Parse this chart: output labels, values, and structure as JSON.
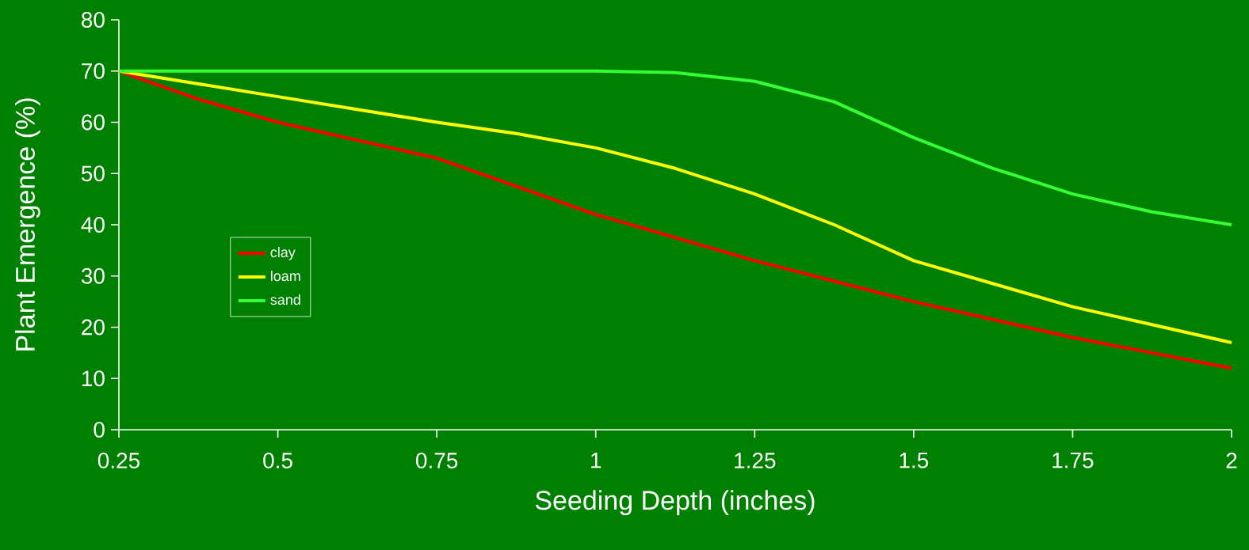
{
  "chart_data": {
    "type": "line",
    "xlabel": "Seeding Depth (inches)",
    "ylabel": "Plant Emergence (%)",
    "x": [
      0.25,
      0.375,
      0.5,
      0.625,
      0.75,
      0.875,
      1,
      1.125,
      1.25,
      1.375,
      1.5,
      1.625,
      1.75,
      1.875,
      2
    ],
    "series": [
      {
        "name": "clay",
        "color": "#ff0000",
        "values": [
          70,
          64.5,
          60,
          56.5,
          53,
          47.5,
          42,
          37.5,
          33,
          29,
          25,
          21.5,
          18,
          15,
          12
        ]
      },
      {
        "name": "loam",
        "color": "#ffff00",
        "values": [
          70,
          67.5,
          65,
          62.5,
          60,
          57.8,
          55,
          51,
          46,
          40,
          33,
          28.5,
          24,
          20.5,
          17
        ]
      },
      {
        "name": "sand",
        "color": "#33ff33",
        "values": [
          70,
          70,
          70,
          70,
          70,
          70,
          70,
          69.7,
          68,
          64,
          57,
          51,
          46,
          42.5,
          40
        ]
      }
    ],
    "xlim": [
      0.25,
      2
    ],
    "ylim": [
      0,
      80
    ],
    "xticks": [
      0.25,
      0.5,
      0.75,
      1,
      1.25,
      1.5,
      1.75,
      2
    ],
    "yticks": [
      0,
      10,
      20,
      30,
      40,
      50,
      60,
      70,
      80
    ],
    "legend": "left",
    "marker": "none",
    "line_style": "solid",
    "grid": false
  }
}
